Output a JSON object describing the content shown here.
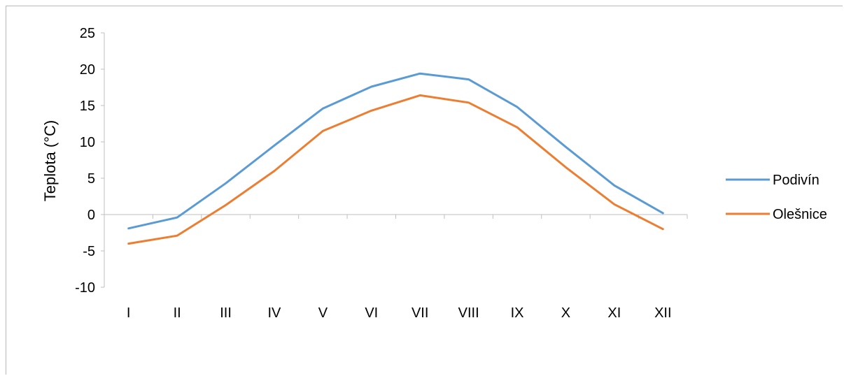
{
  "chart_data": {
    "type": "line",
    "title": "",
    "xlabel": "",
    "ylabel": "Teplota (°C)",
    "categories": [
      "I",
      "II",
      "III",
      "IV",
      "V",
      "VI",
      "VII",
      "VIII",
      "IX",
      "X",
      "XI",
      "XII"
    ],
    "ylim": [
      -10,
      25
    ],
    "yticks": [
      "-10",
      "-5",
      "0",
      "5",
      "10",
      "15",
      "20",
      "25"
    ],
    "grid": false,
    "legend_position": "right",
    "series": [
      {
        "name": "Podivín",
        "color": "#5b9bd5",
        "values": [
          -1.9,
          -0.4,
          4.3,
          9.5,
          14.6,
          17.6,
          19.4,
          18.6,
          14.8,
          9.3,
          4.0,
          0.2
        ]
      },
      {
        "name": "Olešnice",
        "color": "#ed7d31",
        "values": [
          -4.0,
          -2.9,
          1.3,
          6.0,
          11.5,
          14.3,
          16.4,
          15.4,
          12.0,
          6.5,
          1.4,
          -2.0
        ]
      }
    ]
  }
}
